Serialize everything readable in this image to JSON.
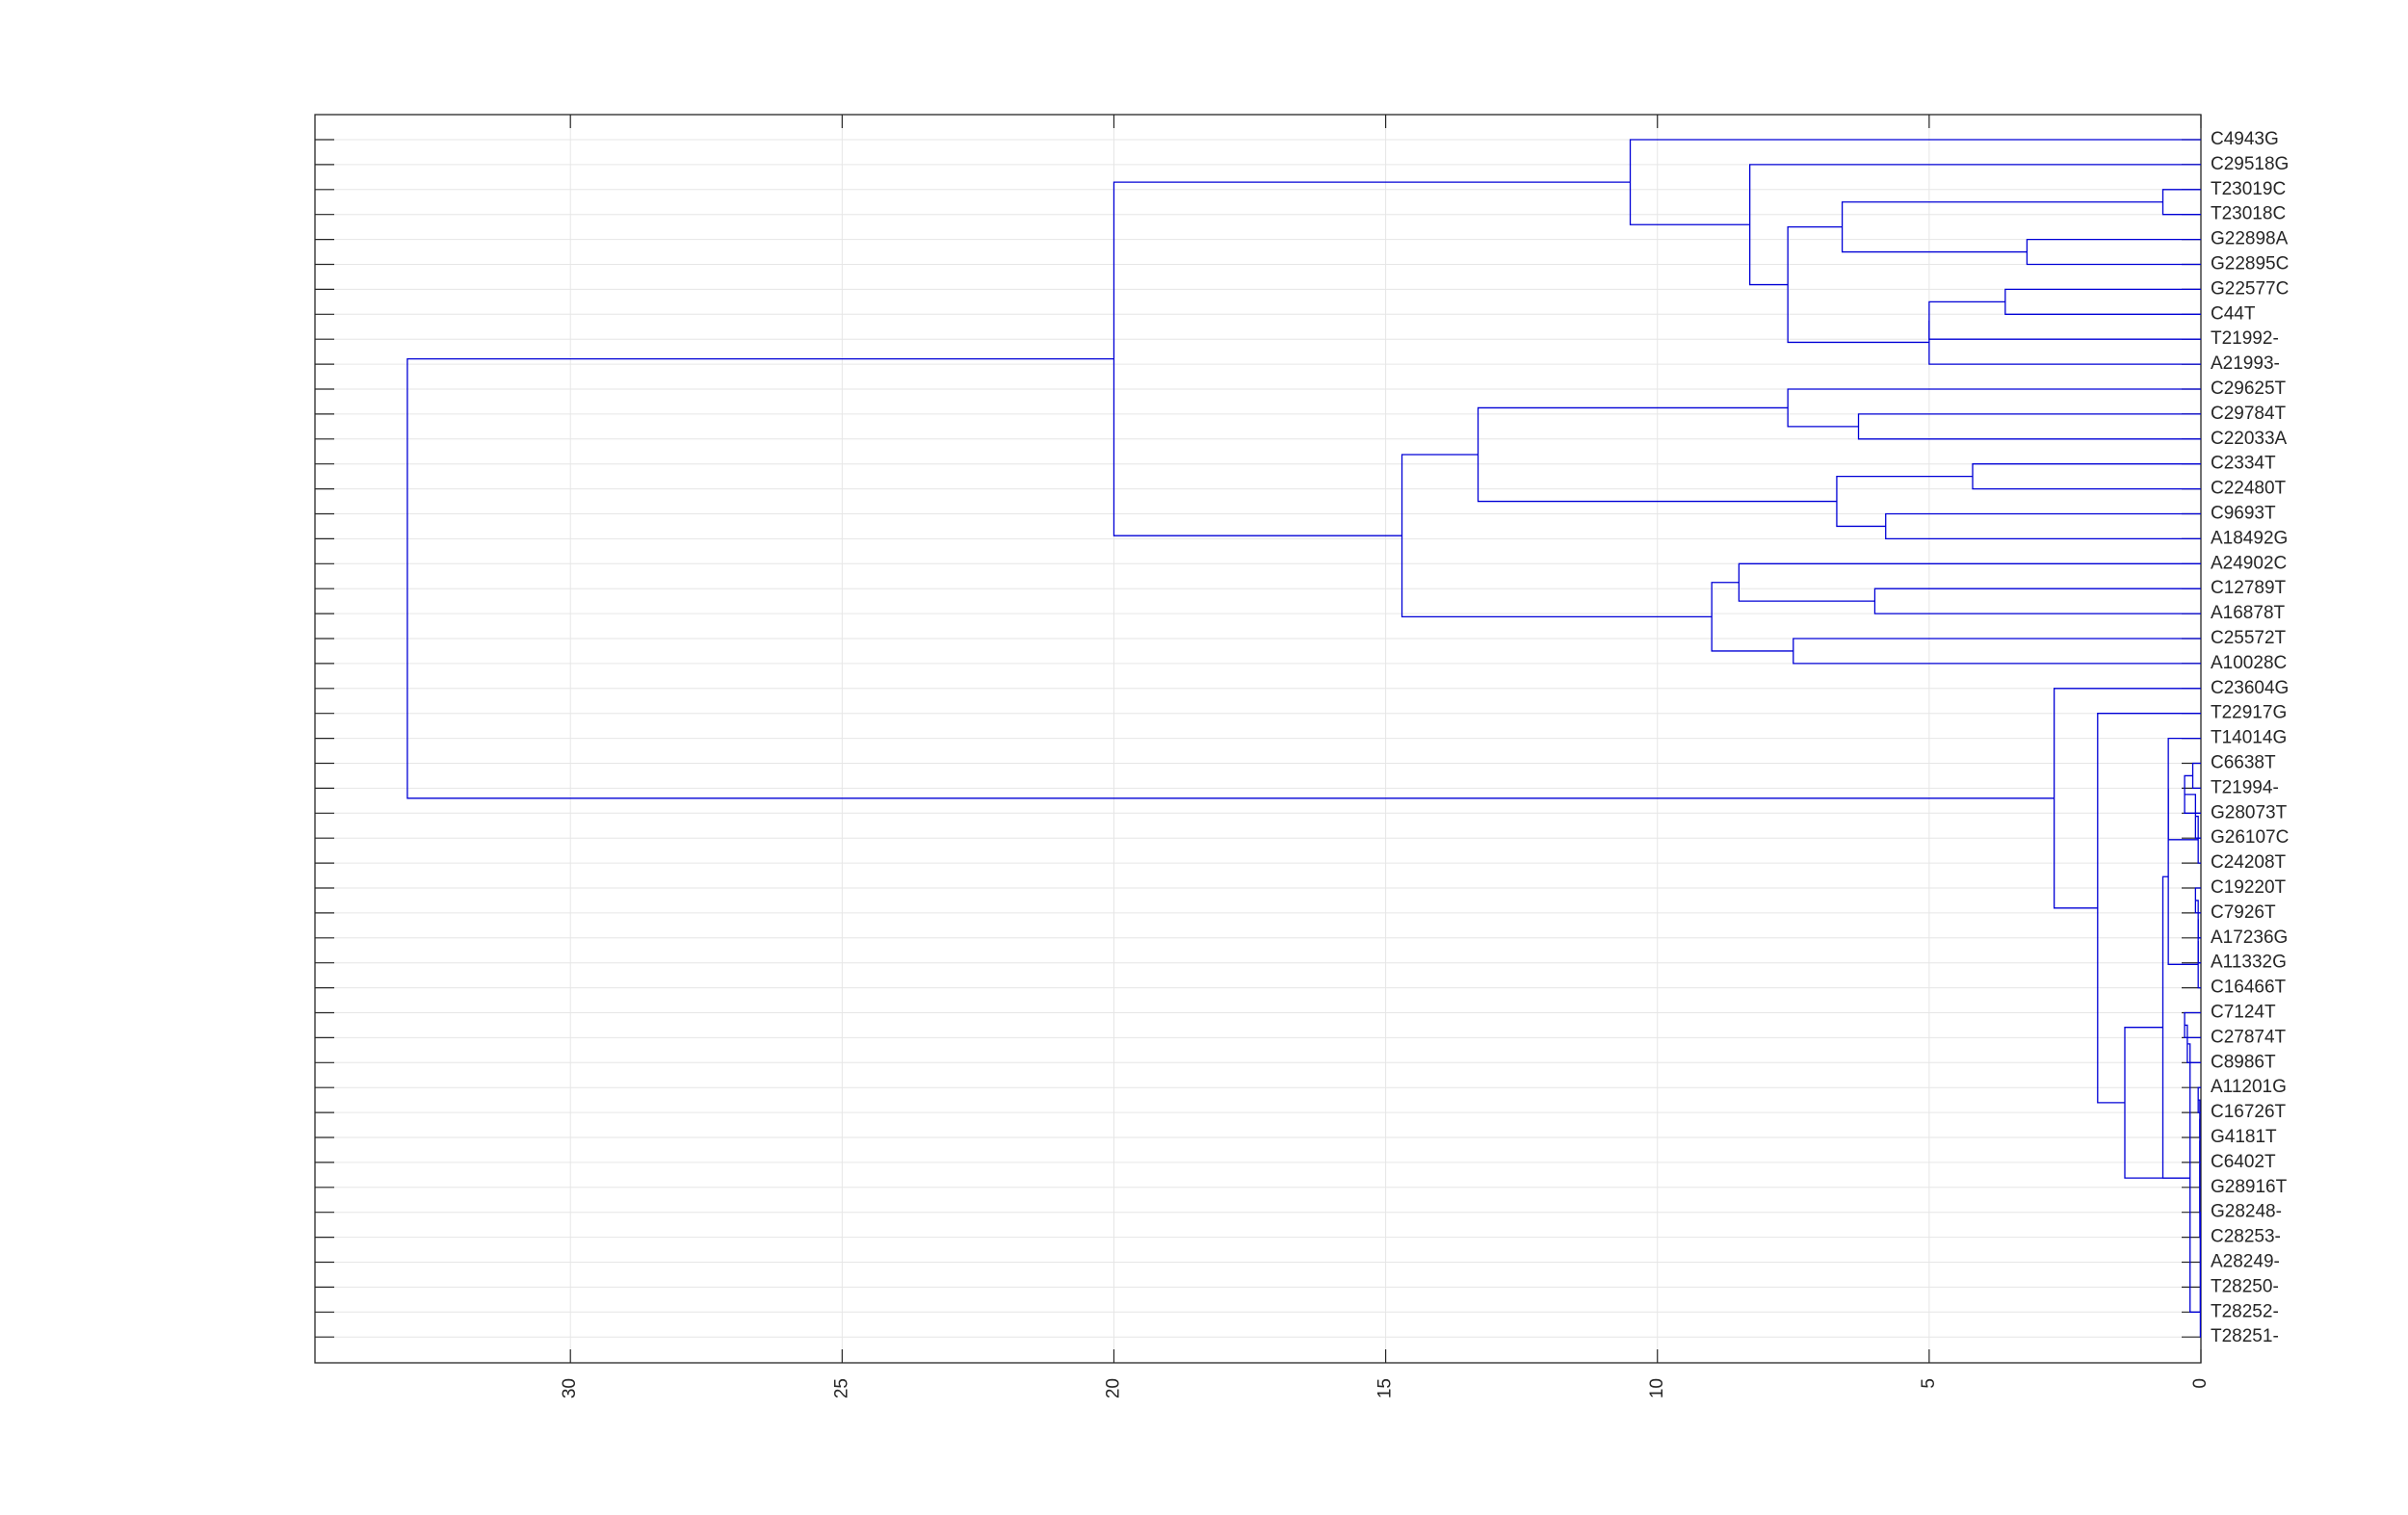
{
  "chart_data": {
    "type": "dendrogram",
    "orientation": "left",
    "title": "",
    "xlabel": "",
    "ylabel": "",
    "xlim": [
      0,
      34.7
    ],
    "x_reversed": true,
    "x_ticks": [
      0,
      5,
      10,
      15,
      20,
      25,
      30
    ],
    "x_tick_labels": [
      "0",
      "5",
      "10",
      "15",
      "20",
      "25",
      "30"
    ],
    "grid": true,
    "link_color": "#0000d6",
    "leaves": [
      "C4943G",
      "C29518G",
      "T23019C",
      "T23018C",
      "G22898A",
      "G22895C",
      "G22577C",
      "C44T",
      "T21992-",
      "A21993-",
      "C29625T",
      "C29784T",
      "C22033A",
      "C2334T",
      "C22480T",
      "C9693T",
      "A18492G",
      "A24902C",
      "C12789T",
      "A16878T",
      "C25572T",
      "A10028C",
      "C23604G",
      "T22917G",
      "T14014G",
      "C6638T",
      "T21994-",
      "G28073T",
      "G26107C",
      "C24208T",
      "C19220T",
      "C7926T",
      "A17236G",
      "A11332G",
      "C16466T",
      "C7124T",
      "C27874T",
      "C8986T",
      "A11201G",
      "C16726T",
      "G4181T",
      "C6402T",
      "G28916T",
      "G28248-",
      "C28253-",
      "A28249-",
      "T28250-",
      "T28252-",
      "T28251-"
    ],
    "links": [
      {
        "id": "N1",
        "children": [
          "T23019C",
          "T23018C"
        ],
        "height": 0.7
      },
      {
        "id": "N2",
        "children": [
          "G22898A",
          "G22895C"
        ],
        "height": 3.2
      },
      {
        "id": "N3",
        "children": [
          "N1",
          "N2"
        ],
        "height": 6.6
      },
      {
        "id": "N4",
        "children": [
          "G22577C",
          "C44T"
        ],
        "height": 3.6
      },
      {
        "id": "N5",
        "children": [
          "N4",
          "T21992-"
        ],
        "height": 5.0
      },
      {
        "id": "N6",
        "children": [
          "N5",
          "A21993-"
        ],
        "height": 5.0
      },
      {
        "id": "N7",
        "children": [
          "N3",
          "N6"
        ],
        "height": 7.6
      },
      {
        "id": "N8",
        "children": [
          "C29518G",
          "N7"
        ],
        "height": 8.3
      },
      {
        "id": "N9",
        "children": [
          "C4943G",
          "N8"
        ],
        "height": 10.5
      },
      {
        "id": "N10",
        "children": [
          "C29784T",
          "C22033A"
        ],
        "height": 6.3
      },
      {
        "id": "N11",
        "children": [
          "C29625T",
          "N10"
        ],
        "height": 7.6
      },
      {
        "id": "N12",
        "children": [
          "C2334T",
          "C22480T"
        ],
        "height": 4.2
      },
      {
        "id": "N13",
        "children": [
          "C9693T",
          "A18492G"
        ],
        "height": 5.8
      },
      {
        "id": "N14",
        "children": [
          "N12",
          "N13"
        ],
        "height": 6.7
      },
      {
        "id": "N15",
        "children": [
          "N11",
          "N14"
        ],
        "height": 13.3
      },
      {
        "id": "N16",
        "children": [
          "C12789T",
          "A16878T"
        ],
        "height": 6.0
      },
      {
        "id": "N17",
        "children": [
          "A24902C",
          "N16"
        ],
        "height": 8.5
      },
      {
        "id": "N18",
        "children": [
          "C25572T",
          "A10028C"
        ],
        "height": 7.5
      },
      {
        "id": "N19",
        "children": [
          "N17",
          "N18"
        ],
        "height": 9.0
      },
      {
        "id": "N20",
        "children": [
          "N15",
          "N19"
        ],
        "height": 14.7
      },
      {
        "id": "N21",
        "children": [
          "N9",
          "N20"
        ],
        "height": 20.0
      },
      {
        "id": "N22",
        "children": [
          "C6638T",
          "T21994-"
        ],
        "height": 0.15
      },
      {
        "id": "N23",
        "children": [
          "N22",
          "G28073T"
        ],
        "height": 0.3
      },
      {
        "id": "N24",
        "children": [
          "N23",
          "G26107C"
        ],
        "height": 0.1
      },
      {
        "id": "N25",
        "children": [
          "N24",
          "C24208T"
        ],
        "height": 0.05
      },
      {
        "id": "N26",
        "children": [
          "T14014G",
          "N25"
        ],
        "height": 0.6
      },
      {
        "id": "N27",
        "children": [
          "C19220T",
          "C7926T"
        ],
        "height": 0.1
      },
      {
        "id": "N28",
        "children": [
          "N27",
          "A17236G"
        ],
        "height": 0.05
      },
      {
        "id": "N29",
        "children": [
          "N28",
          "A11332G"
        ],
        "height": 0.05
      },
      {
        "id": "N30",
        "children": [
          "N29",
          "C16466T"
        ],
        "height": 0.05
      },
      {
        "id": "N31",
        "children": [
          "N26",
          "N30"
        ],
        "height": 0.6
      },
      {
        "id": "N32",
        "children": [
          "C7124T",
          "C27874T"
        ],
        "height": 0.3
      },
      {
        "id": "N33",
        "children": [
          "N32",
          "C8986T"
        ],
        "height": 0.25
      },
      {
        "id": "N34",
        "children": [
          "A11201G",
          "C16726T"
        ],
        "height": 0.05
      },
      {
        "id": "N35",
        "children": [
          "N34",
          "G4181T"
        ],
        "height": 0.02
      },
      {
        "id": "N36",
        "children": [
          "N35",
          "C6402T"
        ],
        "height": 0.02
      },
      {
        "id": "N37",
        "children": [
          "N36",
          "G28916T"
        ],
        "height": 0.02
      },
      {
        "id": "N38",
        "children": [
          "N37",
          "G28248-"
        ],
        "height": 0.02
      },
      {
        "id": "N39",
        "children": [
          "N38",
          "C28253-"
        ],
        "height": 0.02
      },
      {
        "id": "N40",
        "children": [
          "N39",
          "A28249-"
        ],
        "height": 0.01
      },
      {
        "id": "N41",
        "children": [
          "N40",
          "T28250-"
        ],
        "height": 0.01
      },
      {
        "id": "N42",
        "children": [
          "N41",
          "T28252-"
        ],
        "height": 0.01
      },
      {
        "id": "N43",
        "children": [
          "N42",
          "T28251-"
        ],
        "height": 0.01
      },
      {
        "id": "N44",
        "children": [
          "N33",
          "N43"
        ],
        "height": 0.2
      },
      {
        "id": "N45",
        "children": [
          "N31",
          "N44"
        ],
        "height": 0.7
      },
      {
        "id": "N46",
        "children": [
          "N45",
          "N45b"
        ],
        "height": 0.0
      }
    ],
    "top_links": [
      {
        "id": "N47",
        "children": [
          "N45",
          "N44"
        ],
        "height": 1.4
      },
      {
        "id": "N48",
        "children": [
          "T22917G",
          "N47"
        ],
        "height": 1.9
      },
      {
        "id": "N49",
        "children": [
          "C23604G",
          "N48"
        ],
        "height": 2.7
      },
      {
        "id": "N50",
        "children": [
          "N21",
          "N49"
        ],
        "height": 33.0
      }
    ]
  }
}
